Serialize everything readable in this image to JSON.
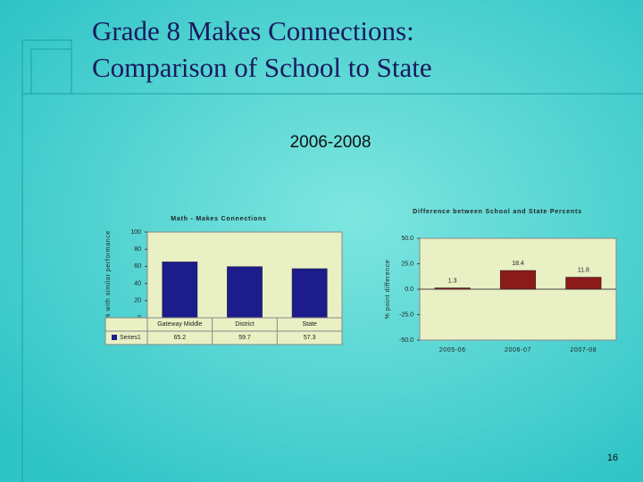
{
  "title_lines": [
    "Grade 8 Makes Connections:",
    "Comparison of School to State"
  ],
  "subtitle": "2006-2008",
  "page_number": "16",
  "chart_data": [
    {
      "type": "bar",
      "title": "Math - Makes Connections",
      "y_label": "% with similar performance",
      "categories": [
        "Gateway Middle",
        "District",
        "State"
      ],
      "series": [
        {
          "name": "Series1",
          "color": "#1c1c8c",
          "values": [
            65.2,
            59.7,
            57.3
          ]
        }
      ],
      "ylim": [
        0,
        100
      ],
      "yticks": [
        0,
        20,
        40,
        60,
        80,
        100
      ],
      "data_table": true
    },
    {
      "type": "bar",
      "title": "Difference between School and State Percents",
      "y_label": "% point difference",
      "categories": [
        "2005-06",
        "2006-07",
        "2007-08"
      ],
      "series": [
        {
          "name": "Series1",
          "color": "#8b1a1a",
          "values": [
            1.3,
            18.4,
            11.8
          ]
        }
      ],
      "ylim": [
        -50,
        50
      ],
      "yticks": [
        {
          "value": -50,
          "label": "-50.0"
        },
        {
          "value": -25,
          "label": "-25.0"
        },
        {
          "value": 0,
          "label": "0.0"
        },
        {
          "value": 25,
          "label": "25.0"
        },
        {
          "value": 50,
          "label": "50.0"
        }
      ],
      "data_labels": true
    }
  ]
}
